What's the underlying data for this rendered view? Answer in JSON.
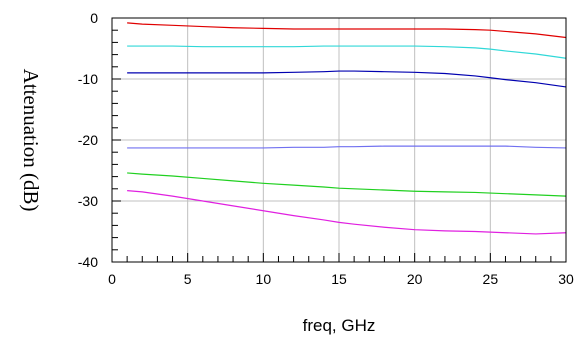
{
  "chart_data": {
    "type": "line",
    "title": "",
    "xlabel": "freq, GHz",
    "ylabel": "Attenuation (dB)",
    "xlim": [
      0,
      30
    ],
    "ylim": [
      -40,
      0
    ],
    "x_ticks": [
      0,
      5,
      10,
      15,
      20,
      25,
      30
    ],
    "y_ticks": [
      0,
      -10,
      -20,
      -30,
      -40
    ],
    "grid": true,
    "legend": "none",
    "x": [
      1,
      2,
      4,
      6,
      8,
      10,
      12,
      14,
      15,
      16,
      18,
      20,
      22,
      24,
      25,
      26,
      28,
      30
    ],
    "series": [
      {
        "color": "#e00000",
        "values": [
          -0.8,
          -1.0,
          -1.2,
          -1.4,
          -1.6,
          -1.7,
          -1.8,
          -1.8,
          -1.8,
          -1.8,
          -1.8,
          -1.8,
          -1.8,
          -1.9,
          -2.0,
          -2.2,
          -2.6,
          -3.2
        ]
      },
      {
        "color": "#30d8d8",
        "values": [
          -4.6,
          -4.6,
          -4.6,
          -4.7,
          -4.7,
          -4.7,
          -4.7,
          -4.6,
          -4.6,
          -4.6,
          -4.6,
          -4.6,
          -4.7,
          -4.9,
          -5.1,
          -5.4,
          -5.9,
          -6.6
        ]
      },
      {
        "color": "#0000b0",
        "values": [
          -9.0,
          -9.0,
          -9.0,
          -9.0,
          -9.0,
          -9.0,
          -8.9,
          -8.8,
          -8.7,
          -8.7,
          -8.8,
          -8.9,
          -9.1,
          -9.5,
          -9.8,
          -10.1,
          -10.6,
          -11.3
        ]
      },
      {
        "color": "#7070f0",
        "values": [
          -21.3,
          -21.3,
          -21.3,
          -21.3,
          -21.3,
          -21.3,
          -21.2,
          -21.2,
          -21.1,
          -21.1,
          -21.0,
          -21.0,
          -21.0,
          -21.0,
          -21.0,
          -21.0,
          -21.2,
          -21.3
        ]
      },
      {
        "color": "#20d020",
        "values": [
          -25.4,
          -25.6,
          -25.9,
          -26.3,
          -26.7,
          -27.1,
          -27.4,
          -27.7,
          -27.9,
          -28.0,
          -28.2,
          -28.4,
          -28.5,
          -28.6,
          -28.7,
          -28.8,
          -29.0,
          -29.2
        ]
      },
      {
        "color": "#e020e0",
        "values": [
          -28.3,
          -28.5,
          -29.2,
          -30.0,
          -30.8,
          -31.6,
          -32.4,
          -33.1,
          -33.5,
          -33.8,
          -34.3,
          -34.7,
          -34.9,
          -35.0,
          -35.1,
          -35.2,
          -35.4,
          -35.2
        ]
      }
    ]
  }
}
